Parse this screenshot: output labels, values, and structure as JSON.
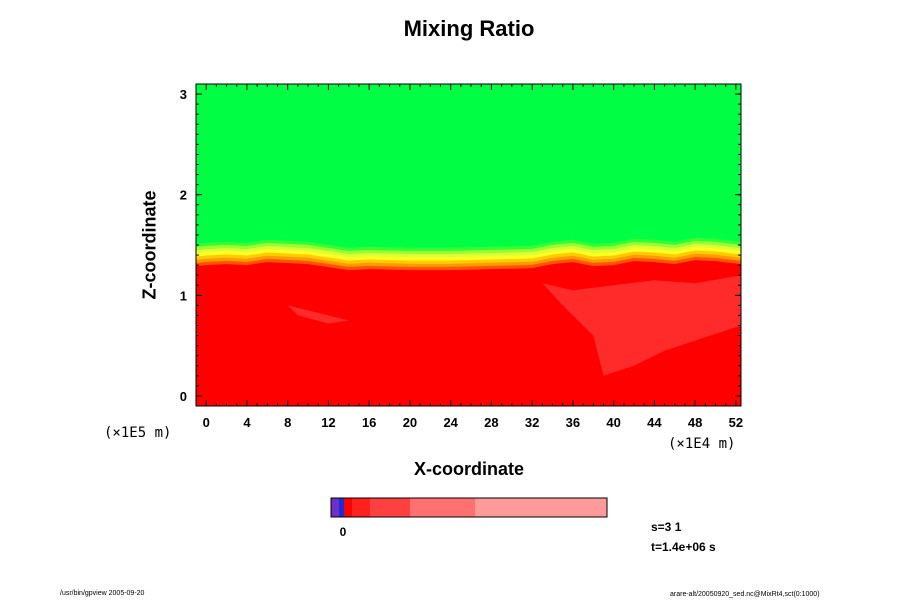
{
  "chart_data": {
    "type": "heatmap",
    "title": "Mixing Ratio",
    "xlabel": "X-coordinate",
    "ylabel": "Z-coordinate",
    "x_unit": "(×1E4 m)",
    "z_unit": "(×1E5 m)",
    "xlim": [
      -1,
      52.5
    ],
    "ylim": [
      -0.1,
      3.1
    ],
    "x_ticks": [
      "0",
      "4",
      "8",
      "12",
      "16",
      "20",
      "24",
      "28",
      "32",
      "36",
      "40",
      "44",
      "48",
      "52"
    ],
    "x_tick_values": [
      0,
      4,
      8,
      12,
      16,
      20,
      24,
      28,
      32,
      36,
      40,
      44,
      48,
      52
    ],
    "y_ticks": [
      "0",
      "1",
      "2",
      "3"
    ],
    "y_tick_values": [
      0,
      1,
      2,
      3
    ],
    "regions": {
      "upper_color": "#00ff44",
      "lower_color": "#ff0000",
      "inner_color": "#ff2a2a",
      "boundary_colors": [
        "#33ff33",
        "#99ff33",
        "#ddff33",
        "#ffff22",
        "#ffcc00",
        "#ff9900",
        "#ff5500"
      ],
      "interface": [
        [
          -1,
          1.31
        ],
        [
          0,
          1.32
        ],
        [
          2,
          1.33
        ],
        [
          4,
          1.32
        ],
        [
          6,
          1.35
        ],
        [
          8,
          1.34
        ],
        [
          10,
          1.33
        ],
        [
          12,
          1.3
        ],
        [
          14,
          1.27
        ],
        [
          16,
          1.28
        ],
        [
          20,
          1.27
        ],
        [
          24,
          1.27
        ],
        [
          28,
          1.28
        ],
        [
          32,
          1.29
        ],
        [
          34,
          1.33
        ],
        [
          36,
          1.35
        ],
        [
          38,
          1.31
        ],
        [
          40,
          1.32
        ],
        [
          42,
          1.36
        ],
        [
          44,
          1.35
        ],
        [
          46,
          1.33
        ],
        [
          48,
          1.37
        ],
        [
          50,
          1.36
        ],
        [
          52.5,
          1.33
        ]
      ]
    },
    "colorbar": {
      "colors": [
        "#6f2fc8",
        "#1a2bd8",
        "#ff0000",
        "#ff2020",
        "#ff4040",
        "#ff7070",
        "#ff9a9a"
      ],
      "widths": [
        8,
        5,
        8,
        18,
        40,
        65,
        132
      ],
      "labels": [
        "0"
      ]
    }
  },
  "info": {
    "step": "s=3 1",
    "time": "t=1.4e+06 s"
  },
  "footer": {
    "left": "/usr/bin/gpview 2005-09-20",
    "right": "arare-alt/20050920_sed.nc@MixRt4,sct(0:1000)"
  }
}
